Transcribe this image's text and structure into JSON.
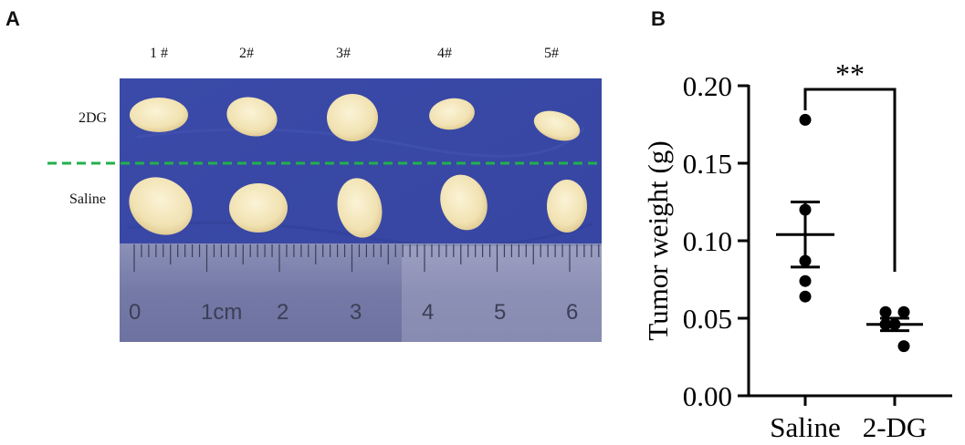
{
  "panel_a": {
    "letter": "A",
    "sample_labels": [
      "1 #",
      "2#",
      "3#",
      "4#",
      "5#"
    ],
    "row_labels": {
      "top": "2DG",
      "bottom": "Saline"
    },
    "ruler_labels": [
      "0",
      "1cm",
      "2",
      "3",
      "4",
      "5",
      "6"
    ],
    "colors": {
      "background": "#3949a7",
      "divider": "#22b04b",
      "tumor": "#f3e7bf"
    }
  },
  "panel_b": {
    "letter": "B",
    "sig_label": "**"
  },
  "chart_data": {
    "type": "scatter",
    "title": "",
    "xlabel": "",
    "ylabel": "Tumor weight (g)",
    "ylim": [
      0,
      0.2
    ],
    "yticks": [
      "0.00",
      "0.05",
      "0.10",
      "0.15",
      "0.20"
    ],
    "categories": [
      "Saline",
      "2-DG"
    ],
    "series": [
      {
        "values": [
          0.178,
          0.12,
          0.087,
          0.074,
          0.064
        ],
        "mean": 0.104,
        "sem": 0.021
      },
      {
        "values": [
          0.054,
          0.054,
          0.046,
          0.046,
          0.032
        ],
        "mean": 0.046,
        "sem": 0.004
      }
    ],
    "significance": {
      "between": [
        "Saline",
        "2-DG"
      ],
      "label": "**"
    },
    "grid": false
  }
}
